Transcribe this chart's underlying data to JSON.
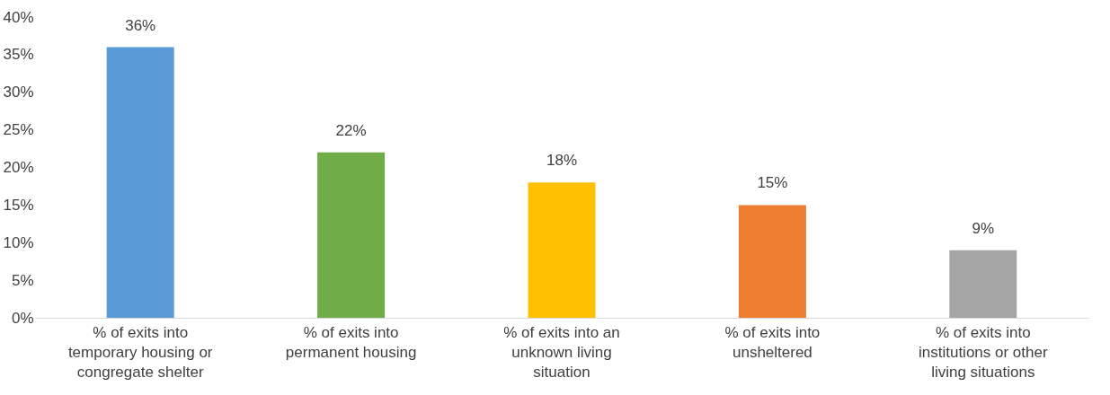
{
  "chart_data": {
    "type": "bar",
    "categories": [
      "% of exits into temporary housing or congregate shelter",
      "% of exits into permanent housing",
      "% of exits into an unknown living situation",
      "% of exits into unsheltered",
      "% of exits into institutions or other living situations"
    ],
    "values": [
      36,
      22,
      18,
      15,
      9
    ],
    "colors": [
      "#5b9bd5",
      "#70ad47",
      "#ffc000",
      "#ed7d31",
      "#a5a5a5"
    ],
    "value_labels": [
      "36%",
      "22%",
      "18%",
      "15%",
      "9%"
    ],
    "ylim": [
      0,
      40
    ],
    "yticks": [
      {
        "value": 0,
        "label": "0%"
      },
      {
        "value": 5,
        "label": "5%"
      },
      {
        "value": 10,
        "label": "10%"
      },
      {
        "value": 15,
        "label": "15%"
      },
      {
        "value": 20,
        "label": "20%"
      },
      {
        "value": 25,
        "label": "25%"
      },
      {
        "value": 30,
        "label": "30%"
      },
      {
        "value": 35,
        "label": "35%"
      },
      {
        "value": 40,
        "label": "40%"
      }
    ],
    "grid": false
  }
}
